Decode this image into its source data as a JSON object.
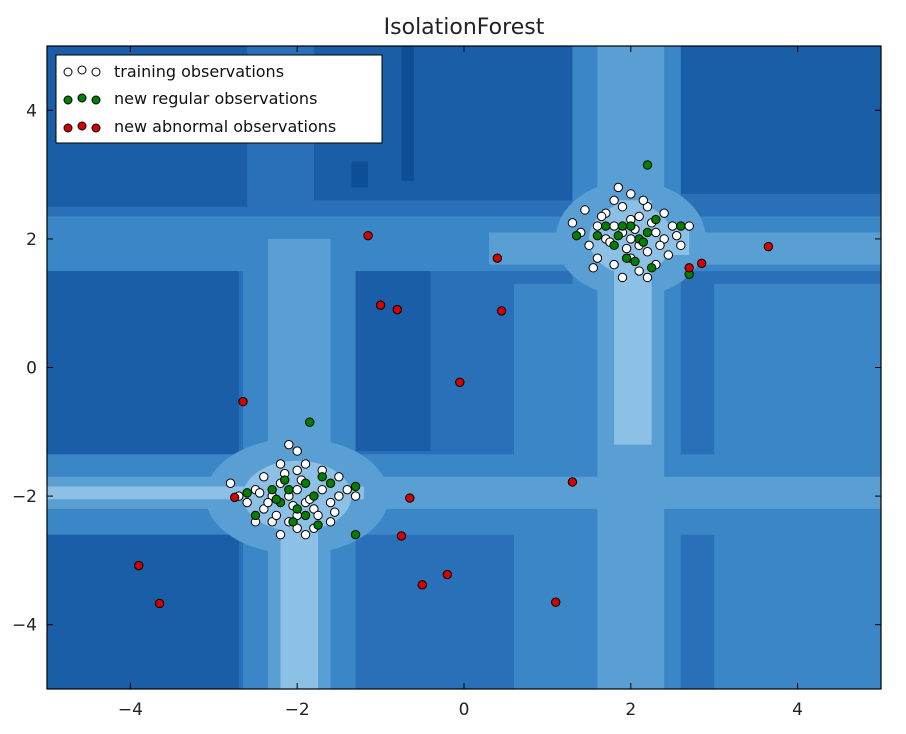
{
  "chart_data": {
    "type": "scatter",
    "title": "IsolationForest",
    "xlabel": "",
    "ylabel": "",
    "xlim": [
      -5,
      5
    ],
    "ylim": [
      -5,
      5
    ],
    "xticks": [
      -4,
      -2,
      0,
      2,
      4
    ],
    "yticks": [
      -4,
      -2,
      0,
      2,
      4
    ],
    "xtick_labels": [
      "−4",
      "−2",
      "0",
      "2",
      "4"
    ],
    "ytick_labels": [
      "−4",
      "−2",
      "0",
      "2",
      "4"
    ],
    "grid": false,
    "legend_position": "top-left",
    "background": "filled contour of anomaly score (Blues colormap)",
    "contour_colors": [
      "#1b5ea8",
      "#2a70b8",
      "#3a86c6",
      "#5a9fd4",
      "#8cc0e4"
    ],
    "series": [
      {
        "name": "training observations",
        "color": "#ffffff",
        "edge_color": "#000000",
        "points": [
          [
            -2.0,
            -1.9
          ],
          [
            -2.1,
            -2.0
          ],
          [
            -1.9,
            -2.1
          ],
          [
            -2.2,
            -1.8
          ],
          [
            -1.8,
            -2.2
          ],
          [
            -2.3,
            -2.0
          ],
          [
            -1.7,
            -1.9
          ],
          [
            -2.0,
            -2.3
          ],
          [
            -2.0,
            -1.6
          ],
          [
            -2.4,
            -2.2
          ],
          [
            -1.6,
            -2.1
          ],
          [
            -2.1,
            -2.4
          ],
          [
            -1.9,
            -1.5
          ],
          [
            -2.5,
            -1.9
          ],
          [
            -1.5,
            -2.0
          ],
          [
            -2.2,
            -1.5
          ],
          [
            -1.8,
            -2.5
          ],
          [
            -2.3,
            -2.4
          ],
          [
            -1.7,
            -1.6
          ],
          [
            -2.6,
            -2.1
          ],
          [
            -1.4,
            -1.9
          ],
          [
            -2.0,
            -1.3
          ],
          [
            -2.1,
            -1.2
          ],
          [
            -2.4,
            -1.7
          ],
          [
            -1.6,
            -2.4
          ],
          [
            -2.7,
            -2.0
          ],
          [
            -1.3,
            -2.0
          ],
          [
            -2.2,
            -2.6
          ],
          [
            -1.9,
            -2.6
          ],
          [
            -2.5,
            -2.4
          ],
          [
            -1.5,
            -1.7
          ],
          [
            -2.8,
            -1.8
          ],
          [
            -2.35,
            -2.1
          ],
          [
            -1.75,
            -2.3
          ],
          [
            -2.05,
            -2.15
          ],
          [
            -1.95,
            -1.75
          ],
          [
            -2.15,
            -1.65
          ],
          [
            -1.85,
            -2.05
          ],
          [
            -2.45,
            -1.95
          ],
          [
            -1.55,
            -2.25
          ],
          [
            -2.0,
            -2.5
          ],
          [
            -2.25,
            -2.3
          ],
          [
            2.0,
            2.0
          ],
          [
            1.9,
            2.1
          ],
          [
            2.1,
            1.9
          ],
          [
            1.8,
            2.2
          ],
          [
            2.2,
            1.8
          ],
          [
            2.0,
            2.3
          ],
          [
            1.7,
            2.0
          ],
          [
            2.3,
            2.1
          ],
          [
            2.0,
            1.7
          ],
          [
            1.6,
            2.2
          ],
          [
            2.4,
            2.0
          ],
          [
            1.9,
            2.5
          ],
          [
            2.1,
            1.5
          ],
          [
            1.5,
            1.9
          ],
          [
            2.5,
            2.2
          ],
          [
            1.8,
            1.6
          ],
          [
            2.2,
            2.5
          ],
          [
            1.7,
            2.4
          ],
          [
            2.3,
            1.6
          ],
          [
            1.9,
            1.4
          ],
          [
            2.0,
            2.7
          ],
          [
            1.85,
            2.8
          ],
          [
            2.15,
            2.6
          ],
          [
            1.6,
            1.7
          ],
          [
            2.4,
            2.4
          ],
          [
            2.6,
            1.9
          ],
          [
            1.4,
            2.1
          ],
          [
            1.8,
            2.6
          ],
          [
            2.2,
            1.4
          ],
          [
            2.45,
            1.75
          ],
          [
            1.95,
            1.85
          ],
          [
            2.05,
            2.15
          ],
          [
            1.75,
            1.95
          ],
          [
            2.25,
            2.25
          ],
          [
            1.3,
            2.25
          ],
          [
            2.1,
            2.35
          ],
          [
            1.65,
            2.35
          ],
          [
            2.35,
            1.9
          ],
          [
            1.55,
            1.55
          ],
          [
            2.55,
            2.05
          ],
          [
            2.7,
            2.2
          ],
          [
            1.45,
            2.45
          ]
        ]
      },
      {
        "name": "new regular observations",
        "color": "#008000",
        "edge_color": "#000000",
        "points": [
          [
            -2.1,
            -1.9
          ],
          [
            -1.9,
            -1.8
          ],
          [
            -2.2,
            -2.1
          ],
          [
            -1.8,
            -2.0
          ],
          [
            -2.0,
            -2.2
          ],
          [
            -1.7,
            -1.7
          ],
          [
            -2.3,
            -1.9
          ],
          [
            -1.9,
            -2.3
          ],
          [
            -2.15,
            -1.75
          ],
          [
            -1.6,
            -1.8
          ],
          [
            -2.05,
            -2.4
          ],
          [
            -1.85,
            -0.85
          ],
          [
            -1.3,
            -1.85
          ],
          [
            -1.3,
            -2.6
          ],
          [
            -2.5,
            -2.3
          ],
          [
            -2.6,
            -1.95
          ],
          [
            -1.75,
            -2.45
          ],
          [
            -2.25,
            -2.05
          ],
          [
            2.2,
            3.15
          ],
          [
            1.9,
            2.2
          ],
          [
            2.1,
            2.0
          ],
          [
            1.8,
            1.9
          ],
          [
            2.0,
            2.2
          ],
          [
            2.2,
            2.1
          ],
          [
            1.95,
            1.7
          ],
          [
            2.3,
            2.3
          ],
          [
            1.7,
            2.2
          ],
          [
            2.05,
            1.65
          ],
          [
            2.6,
            2.2
          ],
          [
            1.35,
            2.05
          ],
          [
            2.7,
            1.45
          ],
          [
            2.15,
            1.95
          ],
          [
            1.85,
            2.05
          ],
          [
            2.25,
            1.55
          ],
          [
            1.6,
            2.05
          ]
        ]
      },
      {
        "name": "new abnormal observations",
        "color": "#d40000",
        "edge_color": "#000000",
        "points": [
          [
            -1.15,
            2.05
          ],
          [
            -1.0,
            0.97
          ],
          [
            -0.8,
            0.9
          ],
          [
            0.4,
            1.7
          ],
          [
            0.45,
            0.88
          ],
          [
            -0.05,
            -0.23
          ],
          [
            -2.65,
            -0.53
          ],
          [
            -2.75,
            -2.02
          ],
          [
            -0.65,
            -2.03
          ],
          [
            -0.75,
            -2.62
          ],
          [
            1.3,
            -1.78
          ],
          [
            -3.9,
            -3.08
          ],
          [
            -3.65,
            -3.67
          ],
          [
            -0.5,
            -3.38
          ],
          [
            -0.2,
            -3.22
          ],
          [
            1.1,
            -3.65
          ],
          [
            2.7,
            1.55
          ],
          [
            2.85,
            1.62
          ],
          [
            3.65,
            1.88
          ]
        ]
      }
    ]
  }
}
